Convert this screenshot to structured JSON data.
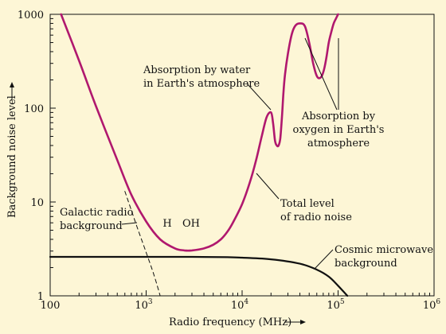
{
  "chart_data": {
    "type": "line",
    "xlabel": "Radio frequency (MHz)",
    "ylabel": "Background noise level",
    "x_scale": "log",
    "y_scale": "log",
    "xlim": [
      100,
      1000000
    ],
    "ylim": [
      1,
      1000
    ],
    "x_ticks": [
      {
        "value": 100,
        "base": "100",
        "exp": ""
      },
      {
        "value": 1000,
        "base": "10",
        "exp": "3"
      },
      {
        "value": 10000,
        "base": "10",
        "exp": "4"
      },
      {
        "value": 100000,
        "base": "10",
        "exp": "5"
      },
      {
        "value": 1000000,
        "base": "10",
        "exp": "6"
      }
    ],
    "y_ticks": [
      {
        "value": 1,
        "label": "1"
      },
      {
        "value": 10,
        "label": "10"
      },
      {
        "value": 100,
        "label": "100"
      },
      {
        "value": 1000,
        "label": "1000"
      }
    ],
    "series": [
      {
        "key": "total",
        "color": "#b0186e",
        "style": "solid",
        "x": [
          130,
          200,
          300,
          500,
          700,
          1000,
          1400,
          2000,
          2500,
          3000,
          4000,
          5000,
          6000,
          7000,
          8000,
          10000,
          12000,
          14000,
          16000,
          18000,
          20000,
          21000,
          22000,
          23000,
          24000,
          25000,
          26000,
          27000,
          28000,
          30000,
          33000,
          36000,
          40000,
          45000,
          50000,
          55000,
          60000,
          65000,
          70000,
          75000,
          80000,
          85000,
          90000,
          95000,
          100000
        ],
        "y": [
          1000,
          320,
          105,
          28,
          12,
          6.2,
          4.0,
          3.2,
          3.05,
          3.05,
          3.2,
          3.5,
          4.0,
          4.8,
          6.0,
          9.5,
          16,
          28,
          50,
          80,
          90,
          70,
          45,
          40,
          40,
          48,
          80,
          150,
          230,
          380,
          620,
          760,
          800,
          750,
          500,
          300,
          220,
          210,
          240,
          330,
          500,
          650,
          800,
          900,
          1000
        ]
      },
      {
        "key": "galactic",
        "color": "#111111",
        "style": "dashed",
        "x": [
          600,
          800,
          1000,
          1200,
          1400
        ],
        "y": [
          13,
          5.5,
          2.9,
          1.7,
          1.0
        ]
      },
      {
        "key": "cmb",
        "color": "#111111",
        "style": "solid",
        "x": [
          100,
          500,
          1000,
          3000,
          7000,
          10000,
          20000,
          40000,
          60000,
          80000,
          100000,
          125000
        ],
        "y": [
          2.6,
          2.6,
          2.6,
          2.6,
          2.58,
          2.55,
          2.45,
          2.2,
          1.9,
          1.6,
          1.28,
          1.0
        ]
      }
    ],
    "annotations": {
      "water": {
        "lines": [
          "Absorption by water",
          "in Earth's atmosphere"
        ]
      },
      "oxygen": {
        "lines": [
          "Absorption by",
          "oxygen in Earth's",
          "atmosphere"
        ]
      },
      "total": {
        "lines": [
          "Total level",
          "of radio noise"
        ]
      },
      "galactic": {
        "lines": [
          "Galactic radio",
          "background"
        ]
      },
      "cmb": {
        "lines": [
          "Cosmic microwave",
          "background"
        ]
      },
      "h": {
        "lines": [
          "H"
        ]
      },
      "oh": {
        "lines": [
          "OH"
        ]
      }
    }
  }
}
